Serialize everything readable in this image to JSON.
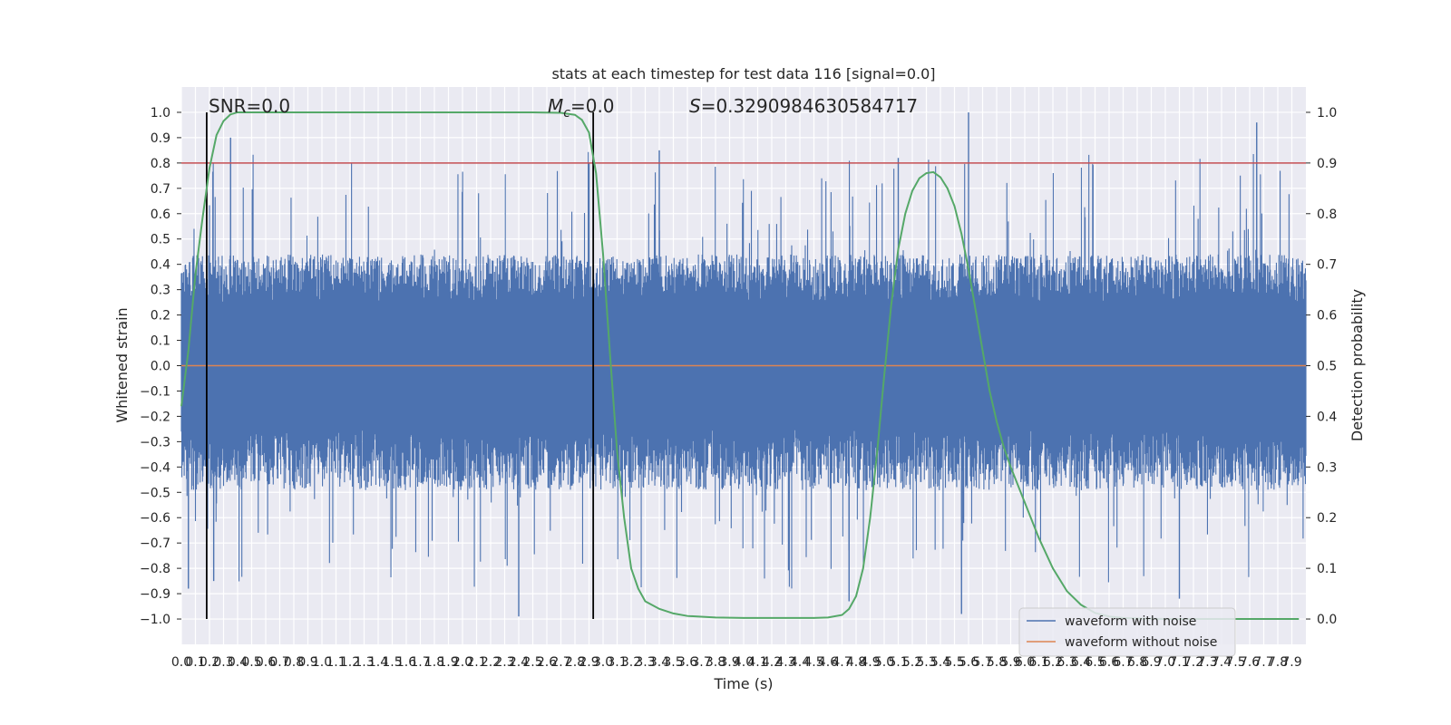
{
  "chart_data": {
    "type": "line",
    "title": "stats at each timestep for test data 116 [signal=0.0]",
    "xlabel": "Time (s)",
    "ylabel": "Whitened strain",
    "y2label": "Detection probability",
    "xlim": [
      0.0,
      8.0
    ],
    "ylim": [
      -1.1,
      1.1
    ],
    "y2lim": [
      -0.05,
      1.05
    ],
    "x_ticks": [
      "0.0",
      "0.1",
      "0.2",
      "0.3",
      "0.4",
      "0.5",
      "0.6",
      "0.7",
      "0.8",
      "0.9",
      "1.0",
      "1.1",
      "1.2",
      "1.3",
      "1.4",
      "1.5",
      "1.6",
      "1.7",
      "1.8",
      "1.9",
      "2.0",
      "2.1",
      "2.2",
      "2.3",
      "2.4",
      "2.5",
      "2.6",
      "2.7",
      "2.8",
      "2.9",
      "3.0",
      "3.1",
      "3.2",
      "3.3",
      "3.4",
      "3.5",
      "3.6",
      "3.7",
      "3.8",
      "3.9",
      "4.0",
      "4.1",
      "4.2",
      "4.3",
      "4.4",
      "4.5",
      "4.6",
      "4.7",
      "4.8",
      "4.9",
      "5.0",
      "5.1",
      "5.2",
      "5.3",
      "5.4",
      "5.5",
      "5.6",
      "5.7",
      "5.8",
      "5.9",
      "6.0",
      "6.1",
      "6.2",
      "6.3",
      "6.4",
      "6.5",
      "6.6",
      "6.7",
      "6.8",
      "6.9",
      "7.0",
      "7.1",
      "7.2",
      "7.3",
      "7.4",
      "7.5",
      "7.6",
      "7.7",
      "7.8",
      "7.9"
    ],
    "y_ticks": [
      "−1.0",
      "−0.9",
      "−0.8",
      "−0.7",
      "−0.6",
      "−0.5",
      "−0.4",
      "−0.3",
      "−0.2",
      "−0.1",
      "0.0",
      "0.1",
      "0.2",
      "0.3",
      "0.4",
      "0.5",
      "0.6",
      "0.7",
      "0.8",
      "0.9",
      "1.0"
    ],
    "y2_ticks": [
      "0.0",
      "0.1",
      "0.2",
      "0.3",
      "0.4",
      "0.5",
      "0.6",
      "0.7",
      "0.8",
      "0.9",
      "1.0"
    ],
    "grid": true,
    "legend_placement": "lower-right",
    "annotations": {
      "snr": "SNR=0.0",
      "mc": "M",
      "mc_sub": "c",
      "mc_value": "=0.0",
      "s": "S",
      "s_value": "=0.3290984630584717"
    },
    "threshold_y": 0.8,
    "vlines_x": [
      0.18,
      2.93
    ],
    "series": [
      {
        "name": "waveform with noise",
        "color": "#4c72b0",
        "envelope_hi": 0.43,
        "envelope_lo": -0.48,
        "core": 0.25,
        "peak_max": 1.0,
        "peak_min": -0.99
      },
      {
        "name": "waveform without noise",
        "color": "#dd8452",
        "values_note_const": 0.0
      },
      {
        "name": "detection probability",
        "color": "#55a868",
        "x": [
          0.0,
          0.05,
          0.1,
          0.15,
          0.2,
          0.25,
          0.3,
          0.35,
          0.4,
          0.45,
          0.5,
          0.6,
          0.8,
          1.0,
          1.5,
          2.0,
          2.5,
          2.7,
          2.8,
          2.85,
          2.9,
          2.95,
          3.0,
          3.05,
          3.1,
          3.15,
          3.2,
          3.25,
          3.3,
          3.4,
          3.5,
          3.6,
          3.8,
          4.0,
          4.5,
          4.6,
          4.7,
          4.75,
          4.8,
          4.85,
          4.9,
          4.95,
          5.0,
          5.05,
          5.1,
          5.15,
          5.2,
          5.25,
          5.3,
          5.35,
          5.4,
          5.45,
          5.5,
          5.55,
          5.6,
          5.65,
          5.7,
          5.75,
          5.8,
          5.85,
          5.9,
          6.0,
          6.1,
          6.2,
          6.3,
          6.4,
          6.5,
          6.6,
          6.7,
          6.8,
          7.0,
          7.5,
          7.95
        ],
        "values": [
          0.42,
          0.53,
          0.68,
          0.79,
          0.89,
          0.955,
          0.983,
          0.996,
          1.0,
          1.0,
          1.0,
          1.0,
          1.0,
          1.0,
          1.0,
          1.0,
          1.0,
          0.999,
          0.995,
          0.985,
          0.96,
          0.88,
          0.72,
          0.52,
          0.33,
          0.2,
          0.1,
          0.06,
          0.035,
          0.02,
          0.011,
          0.006,
          0.003,
          0.002,
          0.002,
          0.003,
          0.008,
          0.02,
          0.045,
          0.1,
          0.2,
          0.33,
          0.48,
          0.62,
          0.73,
          0.8,
          0.845,
          0.87,
          0.88,
          0.882,
          0.872,
          0.85,
          0.815,
          0.76,
          0.69,
          0.61,
          0.53,
          0.45,
          0.39,
          0.34,
          0.3,
          0.23,
          0.16,
          0.1,
          0.055,
          0.028,
          0.012,
          0.005,
          0.002,
          0.001,
          0.0,
          0.0,
          0.0
        ]
      }
    ]
  }
}
